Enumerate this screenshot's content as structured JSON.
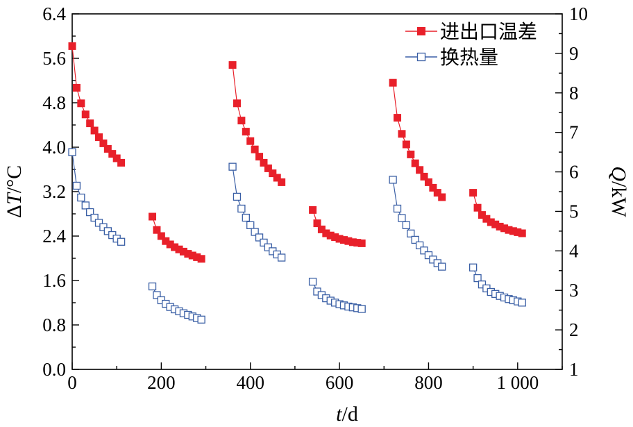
{
  "chart_data": {
    "type": "scatter",
    "x_ticks": [
      "0",
      "200",
      "400",
      "600",
      "800",
      "1 000"
    ],
    "x_range": [
      0,
      1100
    ],
    "y_left_ticks": [
      "0.0",
      "0.8",
      "1.6",
      "2.4",
      "3.2",
      "4.0",
      "4.8",
      "5.6",
      "6.4"
    ],
    "y_left_range": [
      0,
      6.4
    ],
    "y_right_ticks": [
      "1",
      "2",
      "3",
      "4",
      "5",
      "6",
      "7",
      "8",
      "9",
      "10"
    ],
    "y_right_range": [
      1,
      10
    ],
    "xlabel": {
      "italic": "t",
      "rest": "/d"
    },
    "ylabel_left": {
      "prefix": "Δ",
      "italic": "T",
      "rest": "/°C"
    },
    "ylabel_right": {
      "italic": "Q",
      "rest": "/kW"
    },
    "grid": false,
    "legend_position": "top-right",
    "series": [
      {
        "name": "进出口温差",
        "axis": "left",
        "color": "#e8202a",
        "marker": "filled-square",
        "segments": [
          {
            "x": [
              0,
              10,
              20,
              30,
              40,
              50,
              60,
              70,
              80,
              90,
              100,
              110
            ],
            "y": [
              5.82,
              5.07,
              4.79,
              4.59,
              4.43,
              4.3,
              4.18,
              4.07,
              3.97,
              3.88,
              3.8,
              3.72
            ]
          },
          {
            "x": [
              180,
              190,
              200,
              210,
              220,
              230,
              240,
              250,
              260,
              270,
              280,
              290
            ],
            "y": [
              2.75,
              2.51,
              2.4,
              2.31,
              2.25,
              2.2,
              2.16,
              2.12,
              2.08,
              2.05,
              2.02,
              1.99
            ]
          },
          {
            "x": [
              360,
              370,
              380,
              390,
              400,
              410,
              420,
              430,
              440,
              450,
              460,
              470
            ],
            "y": [
              5.48,
              4.79,
              4.48,
              4.28,
              4.11,
              3.96,
              3.83,
              3.72,
              3.62,
              3.53,
              3.45,
              3.37
            ]
          },
          {
            "x": [
              540,
              550,
              560,
              570,
              580,
              590,
              600,
              610,
              620,
              630,
              640,
              650
            ],
            "y": [
              2.87,
              2.63,
              2.52,
              2.45,
              2.41,
              2.38,
              2.35,
              2.33,
              2.31,
              2.29,
              2.28,
              2.27
            ]
          },
          {
            "x": [
              720,
              730,
              740,
              750,
              760,
              770,
              780,
              790,
              800,
              810,
              820,
              830
            ],
            "y": [
              5.16,
              4.53,
              4.24,
              4.05,
              3.87,
              3.71,
              3.59,
              3.47,
              3.37,
              3.27,
              3.18,
              3.1
            ]
          },
          {
            "x": [
              900,
              910,
              920,
              930,
              940,
              950,
              960,
              970,
              980,
              990,
              1000,
              1010
            ],
            "y": [
              3.18,
              2.91,
              2.78,
              2.71,
              2.65,
              2.61,
              2.57,
              2.54,
              2.51,
              2.49,
              2.47,
              2.45
            ]
          }
        ]
      },
      {
        "name": "换热量",
        "axis": "right",
        "color": "#3a5fa5",
        "marker": "open-square",
        "segments": [
          {
            "x": [
              0,
              10,
              20,
              30,
              40,
              50,
              60,
              70,
              80,
              90,
              100,
              110
            ],
            "y": [
              6.5,
              5.65,
              5.35,
              5.15,
              4.98,
              4.84,
              4.71,
              4.6,
              4.5,
              4.4,
              4.31,
              4.23
            ]
          },
          {
            "x": [
              180,
              190,
              200,
              210,
              220,
              230,
              240,
              250,
              260,
              270,
              280,
              290
            ],
            "y": [
              3.1,
              2.88,
              2.75,
              2.66,
              2.58,
              2.52,
              2.47,
              2.42,
              2.38,
              2.34,
              2.3,
              2.26
            ]
          },
          {
            "x": [
              360,
              370,
              380,
              390,
              400,
              410,
              420,
              430,
              440,
              450,
              460,
              470
            ],
            "y": [
              6.13,
              5.37,
              5.07,
              4.84,
              4.65,
              4.48,
              4.34,
              4.21,
              4.09,
              3.99,
              3.91,
              3.83
            ]
          },
          {
            "x": [
              540,
              550,
              560,
              570,
              580,
              590,
              600,
              610,
              620,
              630,
              640,
              650
            ],
            "y": [
              3.22,
              2.97,
              2.88,
              2.8,
              2.74,
              2.69,
              2.65,
              2.62,
              2.59,
              2.57,
              2.55,
              2.53
            ]
          },
          {
            "x": [
              720,
              730,
              740,
              750,
              760,
              770,
              780,
              790,
              800,
              810,
              820,
              830
            ],
            "y": [
              5.8,
              5.07,
              4.83,
              4.65,
              4.44,
              4.28,
              4.14,
              4.01,
              3.89,
              3.78,
              3.69,
              3.6
            ]
          },
          {
            "x": [
              900,
              910,
              920,
              930,
              940,
              950,
              960,
              970,
              980,
              990,
              1000,
              1010
            ],
            "y": [
              3.58,
              3.31,
              3.15,
              3.05,
              2.96,
              2.91,
              2.86,
              2.82,
              2.78,
              2.75,
              2.72,
              2.69
            ]
          }
        ]
      }
    ]
  }
}
